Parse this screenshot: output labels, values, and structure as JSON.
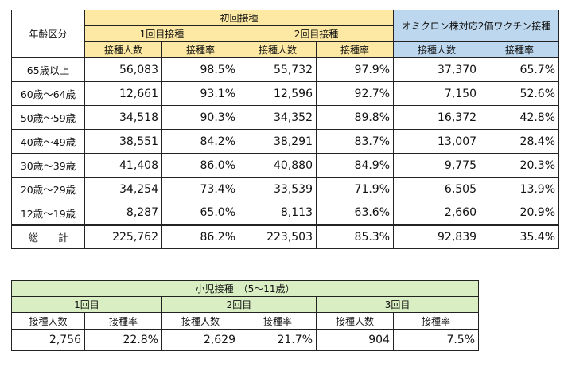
{
  "main_table": {
    "age_header": "年齢区分",
    "initial_group": "初回接種",
    "dose1": "1回目接種",
    "dose2": "2回目接種",
    "omicron": "オミクロン株対応2価ワクチン接種",
    "col_count": "接種人数",
    "col_rate": "接種率",
    "rows": [
      {
        "label": "65歳以上",
        "d1_count": "56,083",
        "d1_rate": "98.5%",
        "d2_count": "55,732",
        "d2_rate": "97.9%",
        "om_count": "37,370",
        "om_rate": "65.7%"
      },
      {
        "label": "60歳～64歳",
        "d1_count": "12,661",
        "d1_rate": "93.1%",
        "d2_count": "12,596",
        "d2_rate": "92.7%",
        "om_count": "7,150",
        "om_rate": "52.6%"
      },
      {
        "label": "50歳～59歳",
        "d1_count": "34,518",
        "d1_rate": "90.3%",
        "d2_count": "34,352",
        "d2_rate": "89.8%",
        "om_count": "16,372",
        "om_rate": "42.8%"
      },
      {
        "label": "40歳～49歳",
        "d1_count": "38,551",
        "d1_rate": "84.2%",
        "d2_count": "38,291",
        "d2_rate": "83.7%",
        "om_count": "13,007",
        "om_rate": "28.4%"
      },
      {
        "label": "30歳～39歳",
        "d1_count": "41,408",
        "d1_rate": "86.0%",
        "d2_count": "40,880",
        "d2_rate": "84.9%",
        "om_count": "9,775",
        "om_rate": "20.3%"
      },
      {
        "label": "20歳～29歳",
        "d1_count": "34,254",
        "d1_rate": "73.4%",
        "d2_count": "33,539",
        "d2_rate": "71.9%",
        "om_count": "6,505",
        "om_rate": "13.9%"
      },
      {
        "label": "12歳～19歳",
        "d1_count": "8,287",
        "d1_rate": "65.0%",
        "d2_count": "8,113",
        "d2_rate": "63.6%",
        "om_count": "2,660",
        "om_rate": "20.9%"
      },
      {
        "label": "総　　計",
        "d1_count": "225,762",
        "d1_rate": "86.2%",
        "d2_count": "223,503",
        "d2_rate": "85.3%",
        "om_count": "92,839",
        "om_rate": "35.4%"
      }
    ]
  },
  "child_table": {
    "title": "小児接種　（5～11歳）",
    "dose1": "1回目",
    "dose2": "2回目",
    "dose3": "3回目",
    "col_count": "接種人数",
    "col_rate": "接種率",
    "values": {
      "d1_count": "2,756",
      "d1_rate": "22.8%",
      "d2_count": "2,629",
      "d2_rate": "21.7%",
      "d3_count": "904",
      "d3_rate": "7.5%"
    }
  },
  "colors": {
    "initial_header": "#fde9a3",
    "omicron_header": "#bdd7ee",
    "child_header": "#d9efc3"
  }
}
